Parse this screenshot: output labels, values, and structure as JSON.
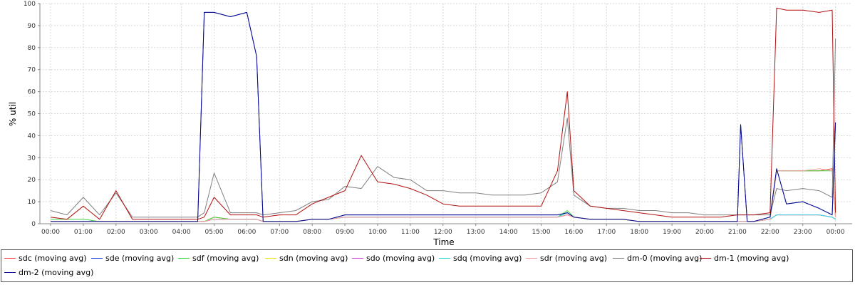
{
  "chart_data": {
    "type": "line",
    "xlabel": "Time",
    "ylabel": "% util",
    "ylim": [
      0,
      100
    ],
    "y_ticks": [
      "0",
      "10",
      "20",
      "30",
      "40",
      "50",
      "60",
      "70",
      "80",
      "90",
      "100"
    ],
    "x_ticks": [
      "00:00",
      "01:00",
      "02:00",
      "03:00",
      "04:00",
      "05:00",
      "06:00",
      "07:00",
      "08:00",
      "09:00",
      "10:00",
      "11:00",
      "12:00",
      "13:00",
      "14:00",
      "15:00",
      "16:00",
      "17:00",
      "18:00",
      "19:00",
      "20:00",
      "21:00",
      "22:00",
      "23:00",
      "00:00"
    ],
    "grid": true,
    "legend_position": "bottom",
    "x_hours": [
      0,
      0.5,
      1.0,
      1.5,
      2.0,
      2.5,
      3.0,
      3.5,
      4.0,
      4.5,
      4.7,
      5.0,
      5.5,
      6.0,
      6.3,
      6.5,
      7.0,
      7.5,
      8.0,
      8.5,
      9.0,
      9.5,
      10.0,
      10.5,
      11.0,
      11.5,
      12.0,
      12.5,
      13.0,
      13.5,
      14.0,
      14.5,
      15.0,
      15.5,
      15.8,
      16.0,
      16.5,
      17.0,
      17.5,
      18.0,
      18.5,
      19.0,
      19.5,
      20.0,
      20.5,
      21.0,
      21.1,
      21.3,
      21.5,
      22.0,
      22.2,
      22.5,
      23.0,
      23.5,
      23.9,
      24.0
    ],
    "series": [
      {
        "name": "sdc (moving avg)",
        "color": "#ff4040",
        "values": [
          1,
          1,
          1,
          1,
          1,
          1,
          1,
          1,
          1,
          1,
          1,
          3,
          2,
          2,
          2,
          1,
          1,
          1,
          2,
          2,
          3,
          3,
          3,
          3,
          3,
          3,
          3,
          3,
          3,
          3,
          3,
          3,
          3,
          3,
          4,
          3,
          2,
          2,
          2,
          1,
          1,
          1,
          1,
          1,
          1,
          1,
          1,
          1,
          1,
          2,
          24,
          24,
          24,
          24,
          25,
          3
        ]
      },
      {
        "name": "sde (moving avg)",
        "color": "#1f3fd6",
        "values": [
          1,
          1,
          1,
          1,
          1,
          1,
          1,
          1,
          1,
          1,
          96,
          96,
          94,
          96,
          76,
          1,
          1,
          1,
          2,
          2,
          4,
          4,
          4,
          4,
          4,
          4,
          4,
          4,
          4,
          4,
          4,
          4,
          4,
          4,
          5,
          3,
          2,
          2,
          2,
          1,
          1,
          1,
          1,
          1,
          1,
          1,
          45,
          1,
          1,
          3,
          25,
          9,
          10,
          7,
          4,
          46
        ]
      },
      {
        "name": "sdf (moving avg)",
        "color": "#3cd63c",
        "values": [
          2,
          2,
          2,
          1,
          1,
          1,
          1,
          1,
          1,
          1,
          1,
          3,
          2,
          2,
          2,
          1,
          1,
          1,
          2,
          2,
          3,
          3,
          3,
          3,
          3,
          3,
          3,
          3,
          3,
          3,
          3,
          3,
          3,
          3,
          6,
          3,
          2,
          2,
          2,
          1,
          1,
          1,
          1,
          1,
          1,
          1,
          1,
          1,
          1,
          2,
          24,
          24,
          24,
          24,
          24,
          3
        ]
      },
      {
        "name": "sdn (moving avg)",
        "color": "#f2e41a",
        "values": [
          1,
          1,
          1,
          1,
          1,
          1,
          1,
          1,
          1,
          1,
          1,
          2,
          2,
          2,
          2,
          1,
          1,
          1,
          2,
          2,
          3,
          3,
          3,
          3,
          3,
          3,
          3,
          3,
          3,
          3,
          3,
          3,
          3,
          3,
          5,
          3,
          2,
          2,
          2,
          1,
          1,
          1,
          1,
          1,
          1,
          1,
          1,
          1,
          1,
          2,
          4,
          4,
          4,
          4,
          3,
          2
        ]
      },
      {
        "name": "sdo (moving avg)",
        "color": "#e040e0",
        "values": [
          1,
          1,
          1,
          1,
          1,
          1,
          1,
          1,
          1,
          1,
          1,
          2,
          2,
          2,
          2,
          1,
          1,
          1,
          2,
          2,
          3,
          3,
          3,
          3,
          3,
          3,
          3,
          3,
          3,
          3,
          3,
          3,
          3,
          3,
          4,
          3,
          2,
          2,
          2,
          1,
          1,
          1,
          1,
          1,
          1,
          1,
          1,
          1,
          1,
          2,
          4,
          4,
          4,
          4,
          3,
          2
        ]
      },
      {
        "name": "sdq (moving avg)",
        "color": "#2ed6e8",
        "values": [
          1,
          1,
          1,
          1,
          1,
          1,
          1,
          1,
          1,
          1,
          1,
          2,
          2,
          2,
          2,
          1,
          1,
          1,
          2,
          2,
          3,
          3,
          3,
          3,
          3,
          3,
          3,
          3,
          3,
          3,
          3,
          3,
          3,
          3,
          5,
          3,
          2,
          2,
          2,
          1,
          1,
          1,
          1,
          1,
          1,
          1,
          1,
          1,
          1,
          2,
          4,
          4,
          4,
          4,
          3,
          2
        ]
      },
      {
        "name": "sdr (moving avg)",
        "color": "#f5a0a0",
        "values": [
          1,
          1,
          1,
          1,
          1,
          1,
          1,
          1,
          1,
          1,
          1,
          2,
          2,
          2,
          2,
          1,
          1,
          1,
          2,
          2,
          3,
          3,
          3,
          3,
          3,
          3,
          3,
          3,
          3,
          3,
          3,
          3,
          3,
          3,
          4,
          3,
          2,
          2,
          2,
          1,
          1,
          1,
          1,
          1,
          1,
          1,
          1,
          1,
          1,
          2,
          24,
          24,
          24,
          25,
          24,
          3
        ]
      },
      {
        "name": "dm-0 (moving avg)",
        "color": "#808080",
        "values": [
          6,
          4,
          12,
          4,
          14,
          3,
          3,
          3,
          3,
          3,
          5,
          23,
          5,
          5,
          5,
          4,
          5,
          6,
          10,
          11,
          17,
          16,
          26,
          21,
          20,
          15,
          15,
          14,
          14,
          13,
          13,
          13,
          14,
          19,
          48,
          13,
          8,
          7,
          7,
          6,
          6,
          5,
          5,
          4,
          4,
          4,
          4,
          4,
          4,
          4,
          16,
          15,
          16,
          15,
          12,
          84
        ]
      },
      {
        "name": "dm-1 (moving avg)",
        "color": "#b01010",
        "values": [
          3,
          2,
          8,
          2,
          15,
          2,
          2,
          2,
          2,
          2,
          3,
          12,
          4,
          4,
          4,
          3,
          4,
          4,
          9,
          12,
          15,
          31,
          19,
          18,
          16,
          13,
          9,
          8,
          8,
          8,
          8,
          8,
          8,
          24,
          60,
          15,
          8,
          7,
          6,
          5,
          4,
          3,
          3,
          3,
          3,
          4,
          4,
          4,
          4,
          5,
          98,
          97,
          97,
          96,
          97,
          5
        ]
      },
      {
        "name": "dm-2 (moving avg)",
        "color": "#0a0a8c",
        "values": [
          1,
          1,
          1,
          1,
          1,
          1,
          1,
          1,
          1,
          1,
          96,
          96,
          94,
          96,
          76,
          1,
          1,
          1,
          2,
          2,
          4,
          4,
          4,
          4,
          4,
          4,
          4,
          4,
          4,
          4,
          4,
          4,
          4,
          4,
          5,
          3,
          2,
          2,
          2,
          1,
          1,
          1,
          1,
          1,
          1,
          1,
          45,
          1,
          1,
          3,
          25,
          9,
          10,
          7,
          4,
          46
        ]
      }
    ]
  }
}
